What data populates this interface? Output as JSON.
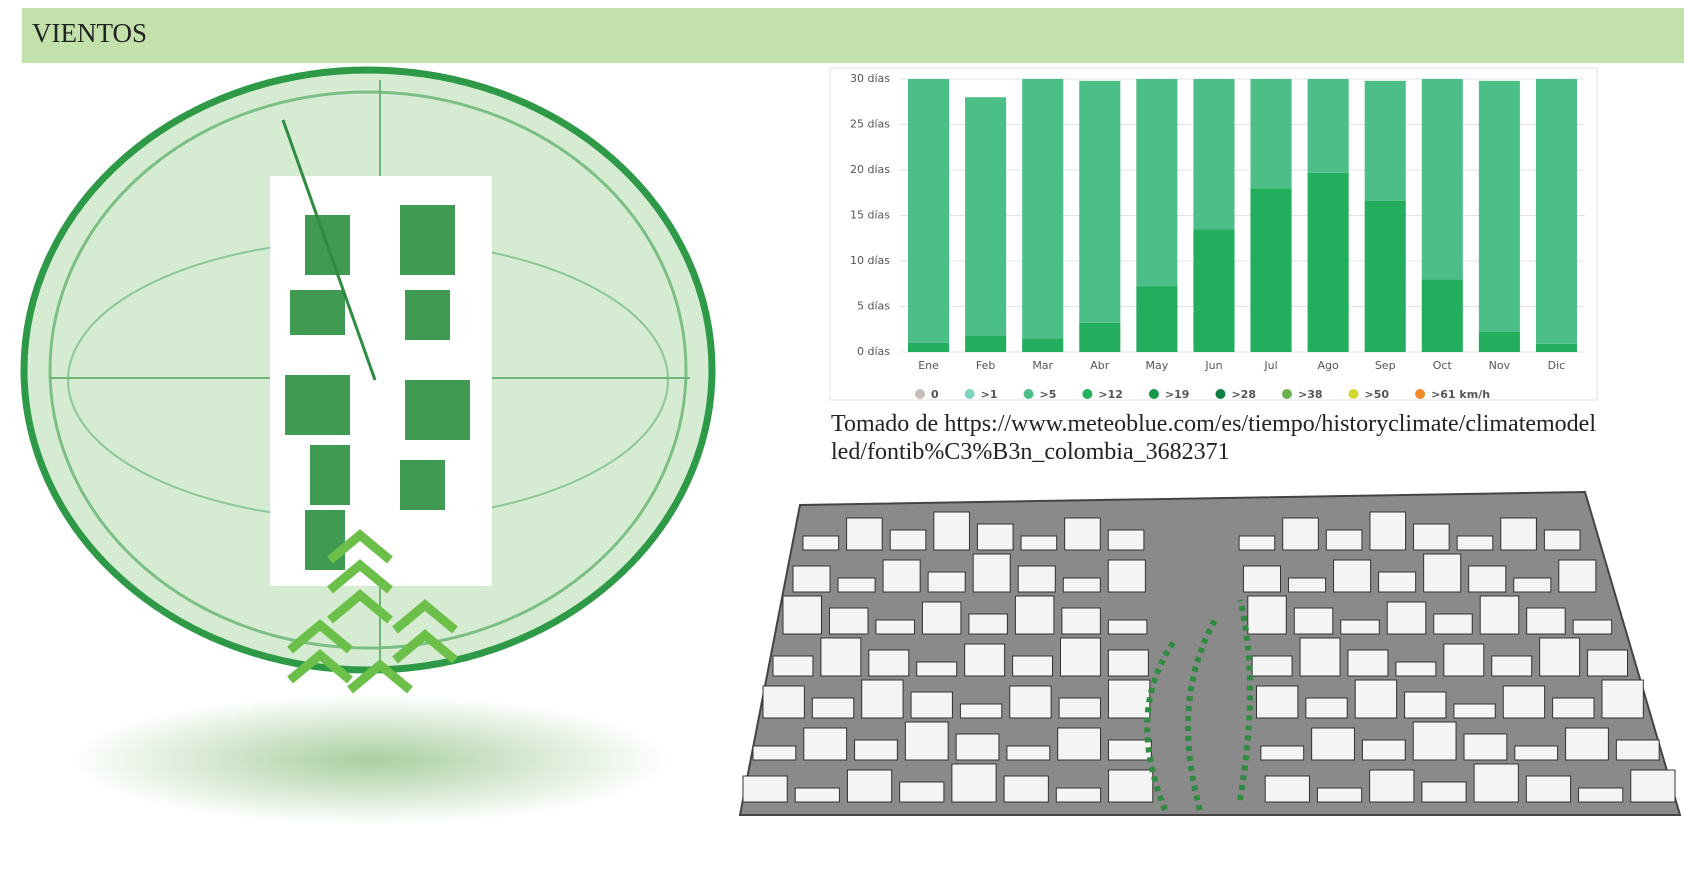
{
  "header": {
    "title": "VIENTOS"
  },
  "chart_data": {
    "type": "stacked_bar",
    "categories": [
      "Ene",
      "Feb",
      "Mar",
      "Abr",
      "May",
      "Jun",
      "Jul",
      "Ago",
      "Sep",
      "Oct",
      "Nov",
      "Dic"
    ],
    "series": [
      {
        "name": "0",
        "color": "#cbbcbc",
        "values": [
          0,
          0,
          0,
          0,
          0,
          0,
          0,
          0,
          0,
          0,
          0,
          0
        ]
      },
      {
        "name": ">1",
        "color": "#7fd3c2",
        "values": [
          0,
          0,
          0,
          0,
          0,
          0,
          0,
          0,
          0,
          0,
          0,
          0
        ]
      },
      {
        "name": ">12",
        "color": "#22ae5c",
        "values": [
          1,
          1.8,
          1.5,
          3.2,
          7.2,
          13.5,
          18,
          19.7,
          16.6,
          8,
          2.2,
          0.9
        ]
      },
      {
        "name": ">5",
        "color": "#4cbe88",
        "values": [
          29,
          26.2,
          28.5,
          26.6,
          22.8,
          16.5,
          12,
          10.3,
          13.2,
          22,
          27.6,
          29.1
        ]
      },
      {
        "name": ">19",
        "color": "#16994a",
        "values": [
          0,
          0,
          0,
          0,
          0,
          0,
          0,
          0,
          0,
          0,
          0,
          0
        ]
      },
      {
        "name": ">28",
        "color": "#0f7f43",
        "values": [
          0,
          0,
          0,
          0,
          0,
          0,
          0,
          0,
          0,
          0,
          0,
          0
        ]
      },
      {
        "name": ">38",
        "color": "#6bb14c",
        "values": [
          0,
          0,
          0,
          0,
          0,
          0,
          0,
          0,
          0,
          0,
          0,
          0
        ]
      },
      {
        "name": ">50",
        "color": "#d6d631",
        "values": [
          0,
          0,
          0,
          0,
          0,
          0,
          0,
          0,
          0,
          0,
          0,
          0
        ]
      },
      {
        "name": ">61 km/h",
        "color": "#f08a2c",
        "values": [
          0,
          0,
          0,
          0,
          0,
          0,
          0,
          0,
          0,
          0,
          0,
          0
        ]
      }
    ],
    "legend_order": [
      0,
      1,
      3,
      2,
      4,
      5,
      6,
      7,
      8
    ],
    "ylim": [
      0,
      30
    ],
    "yticks": [
      {
        "value": 0,
        "label": "0 días"
      },
      {
        "value": 5,
        "label": "5 días"
      },
      {
        "value": 10,
        "label": "10 días"
      },
      {
        "value": 15,
        "label": "15 días"
      },
      {
        "value": 20,
        "label": "20 días"
      },
      {
        "value": 25,
        "label": "25 días"
      },
      {
        "value": 30,
        "label": "30 días"
      }
    ],
    "grid": true
  },
  "caption": "Tomado de https://www.meteoblue.com/es/tiempo/historyclimate/climatemodelled/fontib%C3%B3n_colombia_3682371"
}
